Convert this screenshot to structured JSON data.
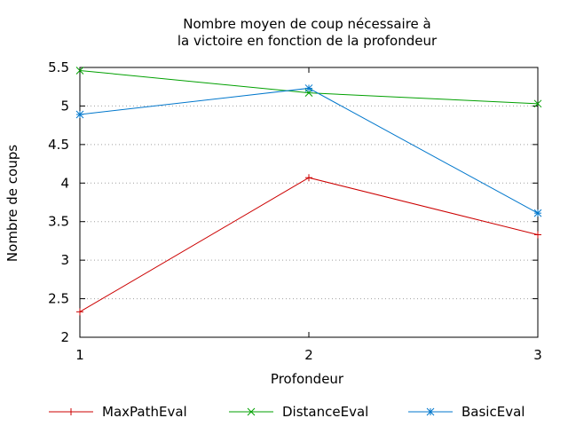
{
  "chart_data": {
    "type": "line",
    "title_lines": [
      "Nombre moyen de coup nécessaire à",
      "la victoire en fonction de la profondeur"
    ],
    "xlabel": "Profondeur",
    "ylabel": "Nombre de coups",
    "x": [
      1,
      2,
      3
    ],
    "xlim": [
      1,
      3
    ],
    "ylim": [
      2,
      5.5
    ],
    "x_ticks": [
      "1",
      "2",
      "3"
    ],
    "y_ticks": [
      {
        "value": 2,
        "label": "2"
      },
      {
        "value": 2.5,
        "label": "2.5"
      },
      {
        "value": 3,
        "label": "3"
      },
      {
        "value": 3.5,
        "label": "3.5"
      },
      {
        "value": 4,
        "label": "4"
      },
      {
        "value": 4.5,
        "label": "4.5"
      },
      {
        "value": 5,
        "label": "5"
      },
      {
        "value": 5.5,
        "label": "5.5"
      }
    ],
    "grid": "horizontal dotted",
    "legend_position": "bottom",
    "series": [
      {
        "name": "MaxPathEval",
        "values": [
          2.33,
          4.07,
          3.33
        ],
        "color": "#cc0000",
        "marker": "plus"
      },
      {
        "name": "DistanceEval",
        "values": [
          5.46,
          5.17,
          5.03
        ],
        "color": "#00a000",
        "marker": "cross"
      },
      {
        "name": "BasicEval",
        "values": [
          4.89,
          5.23,
          3.61
        ],
        "color": "#0077cc",
        "marker": "star"
      }
    ]
  }
}
